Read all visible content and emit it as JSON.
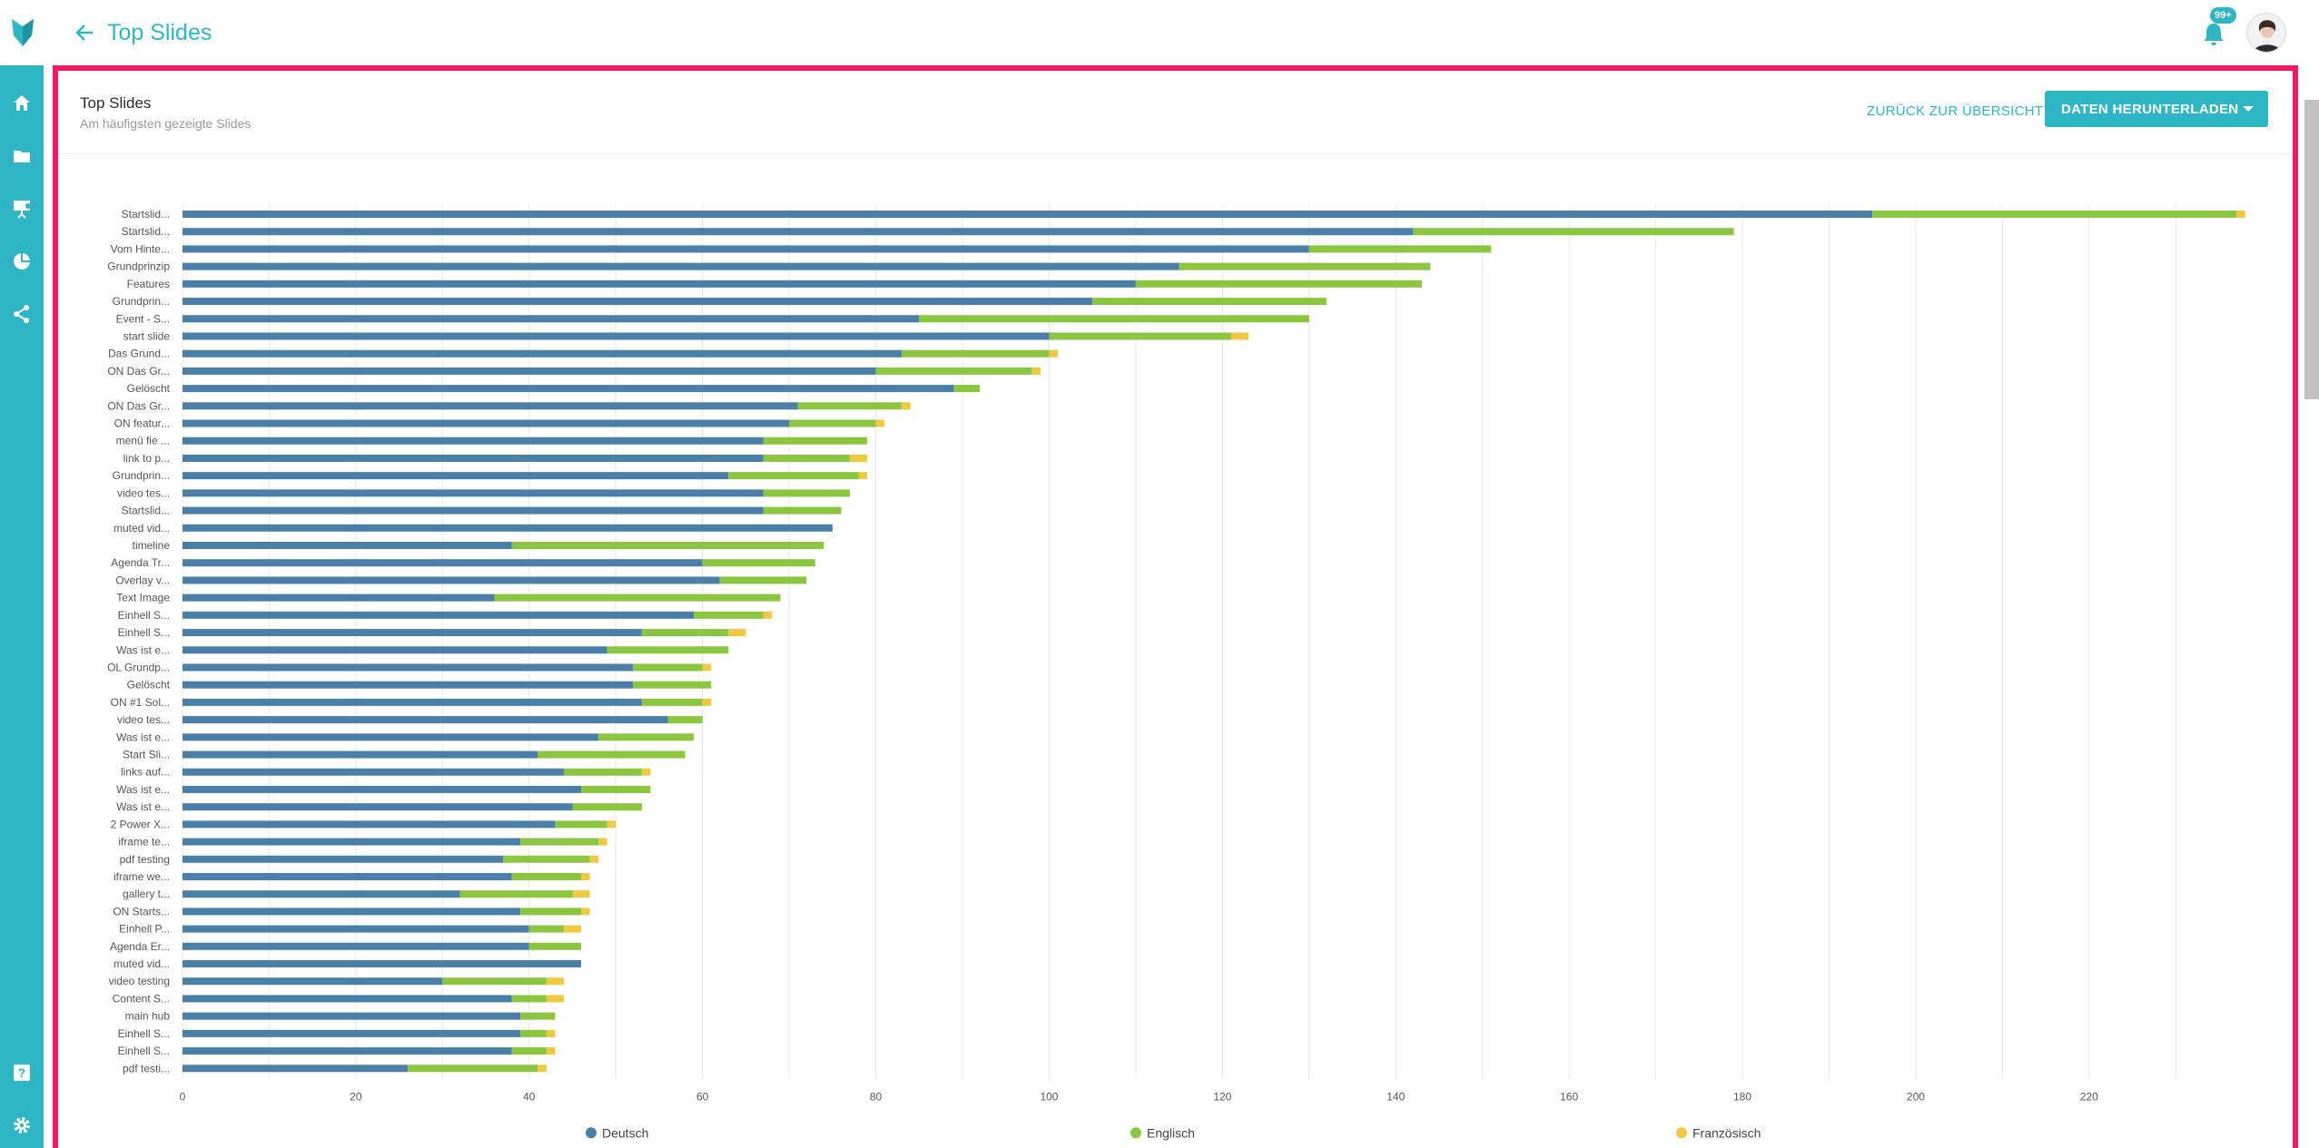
{
  "header": {
    "title": "Top Slides",
    "notification_badge": "99+"
  },
  "card": {
    "title": "Top Slides",
    "subtitle": "Am häufigsten gezeigte Slides",
    "back_link": "ZURÜCK ZUR ÜBERSICHT",
    "download_label": "DATEN HERUNTERLADEN"
  },
  "sidebar": {
    "items": [
      {
        "icon": "home-icon"
      },
      {
        "icon": "folder-icon"
      },
      {
        "icon": "presentation-icon"
      },
      {
        "icon": "pie-chart-icon"
      },
      {
        "icon": "share-icon"
      },
      {
        "icon": "help-icon"
      },
      {
        "icon": "settings-icon"
      }
    ]
  },
  "colors": {
    "accent": "#2fb6c5",
    "frame": "#f4195f",
    "deutsch": "#4a7fa8",
    "englisch": "#8cc540",
    "franzoesisch": "#f0c841"
  },
  "chart_data": {
    "type": "bar",
    "orientation": "horizontal",
    "stacked": true,
    "title": "",
    "xlabel": "",
    "ylabel": "",
    "xlim": [
      0,
      240
    ],
    "xticks": [
      0,
      20,
      40,
      60,
      80,
      100,
      120,
      140,
      160,
      180,
      200,
      220
    ],
    "grid": true,
    "legend_position": "bottom",
    "categories": [
      "Startslid...",
      "Startslid...",
      "Vom Hinte...",
      "Grundprinzip",
      "Features",
      "Grundprin...",
      "Event - S...",
      "start slide",
      "Das Grund...",
      "ON Das Gr...",
      "Gelöscht",
      "ON Das Gr...",
      "ON featur...",
      "menü fie ...",
      "link to p...",
      "Grundprin...",
      "video tes...",
      "Startslid...",
      "muted vid...",
      "timeline",
      "Agenda Tr...",
      "Overlay v...",
      "Text Image",
      "Einhell S...",
      "Einhell S...",
      "Was ist e...",
      "OL Grundp...",
      "Gelöscht",
      "ON #1 Sol...",
      "video tes...",
      "Was ist e...",
      "Start Sli...",
      "links auf...",
      "Was ist e...",
      "Was ist e...",
      "2 Power X...",
      "iframe te...",
      "pdf testing",
      "iframe we...",
      "gallery t...",
      "ON Starts...",
      "Einhell P...",
      "Agenda Er...",
      "muted vid...",
      "video testing",
      "Content S...",
      "main hub",
      "Einhell S...",
      "Einhell S...",
      "pdf testi..."
    ],
    "series": [
      {
        "name": "Deutsch",
        "values": [
          195,
          142,
          130,
          115,
          110,
          105,
          85,
          100,
          83,
          80,
          89,
          71,
          70,
          67,
          67,
          63,
          67,
          67,
          75,
          38,
          60,
          62,
          36,
          59,
          53,
          49,
          52,
          52,
          53,
          56,
          48,
          41,
          44,
          46,
          45,
          43,
          39,
          37,
          38,
          32,
          39,
          40,
          40,
          46,
          30,
          38,
          39,
          39,
          38,
          26
        ]
      },
      {
        "name": "Englisch",
        "values": [
          42,
          37,
          21,
          29,
          33,
          27,
          45,
          21,
          17,
          18,
          3,
          12,
          10,
          12,
          10,
          15,
          10,
          9,
          0,
          36,
          13,
          10,
          33,
          8,
          10,
          14,
          8,
          9,
          7,
          4,
          11,
          17,
          9,
          8,
          8,
          6,
          9,
          10,
          8,
          13,
          7,
          4,
          6,
          0,
          12,
          4,
          4,
          3,
          4,
          15
        ]
      },
      {
        "name": "Französisch",
        "values": [
          1,
          0,
          0,
          0,
          0,
          0,
          0,
          2,
          1,
          1,
          0,
          1,
          1,
          0,
          2,
          1,
          0,
          0,
          0,
          0,
          0,
          0,
          0,
          1,
          2,
          0,
          1,
          0,
          1,
          0,
          0,
          0,
          1,
          0,
          0,
          1,
          1,
          1,
          1,
          2,
          1,
          2,
          0,
          0,
          2,
          2,
          0,
          1,
          1,
          1
        ]
      }
    ]
  }
}
